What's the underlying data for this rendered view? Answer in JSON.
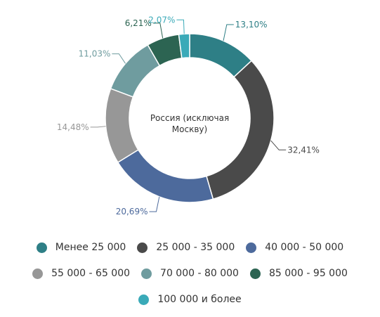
{
  "chart_data": {
    "type": "pie",
    "variant": "donut",
    "center_label": "Россия (исключая Москву)",
    "categories": [
      "Менее 25 000",
      "25 000 - 35 000",
      "40 000 - 50 000",
      "55 000 - 65 000",
      "70 000 - 80 000",
      "85 000 - 95 000",
      "100 000 и более"
    ],
    "values": [
      13.1,
      32.41,
      20.69,
      14.48,
      11.03,
      6.21,
      2.07
    ],
    "value_labels": [
      "13,10%",
      "32,41%",
      "20,69%",
      "14,48%",
      "11,03%",
      "6,21%",
      "2,07%"
    ],
    "colors": [
      "#2e7f86",
      "#4a4a4a",
      "#4d6a9c",
      "#979797",
      "#6f9c9f",
      "#2c6452",
      "#3aaab8"
    ],
    "label_colors": [
      "#2e7f86",
      "#4a4a4a",
      "#4d6a9c",
      "#979797",
      "#6f9c9f",
      "#2c6452",
      "#3aaab8"
    ],
    "legend_position": "bottom"
  }
}
